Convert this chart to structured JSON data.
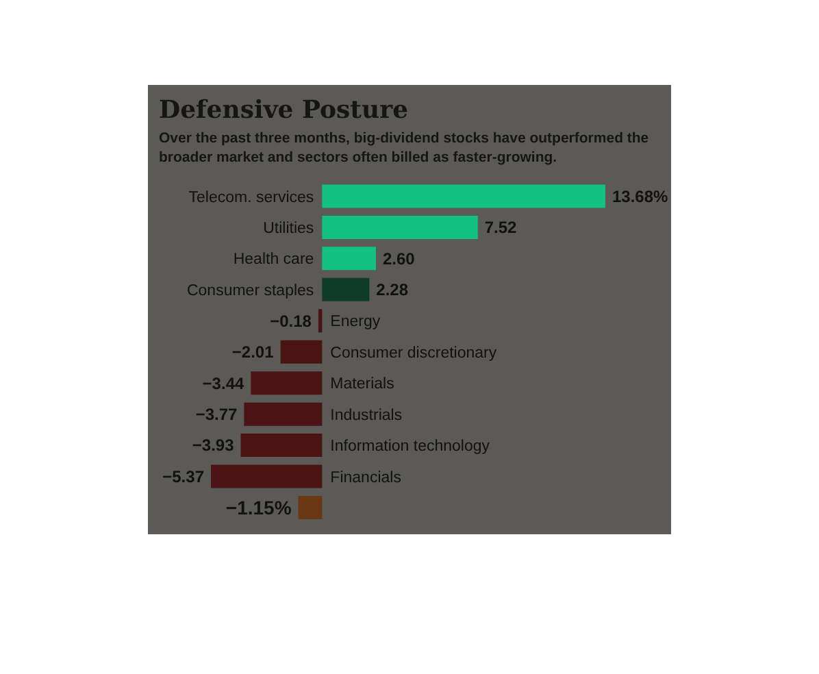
{
  "chart_data": {
    "type": "bar",
    "orientation": "horizontal",
    "title": "Defensive Posture",
    "subtitle": "Over the past three months, big-dividend stocks have outperformed the broader market and sectors often billed as faster-growing.",
    "categories": [
      "Telecom. services",
      "Utilities",
      "Health care",
      "Consumer staples",
      "Energy",
      "Consumer discretionary",
      "Materials",
      "Industrials",
      "Information technology",
      "Financials",
      null
    ],
    "values": [
      13.68,
      7.52,
      2.6,
      2.28,
      -0.18,
      -2.01,
      -3.44,
      -3.77,
      -3.93,
      -5.37,
      -1.15
    ],
    "value_labels": [
      "13.68%",
      "7.52",
      "2.60",
      "2.28",
      "−0.18",
      "−2.01",
      "−3.44",
      "−3.77",
      "−3.93",
      "−5.37",
      "−1.15%"
    ],
    "colors": [
      "#12c283",
      "#12c283",
      "#12c283",
      "#0e3b2a",
      "#4a1414",
      "#4a1414",
      "#4a1414",
      "#4a1414",
      "#4a1414",
      "#4a1414",
      "#6a3814"
    ],
    "grid": false,
    "legend": false
  }
}
